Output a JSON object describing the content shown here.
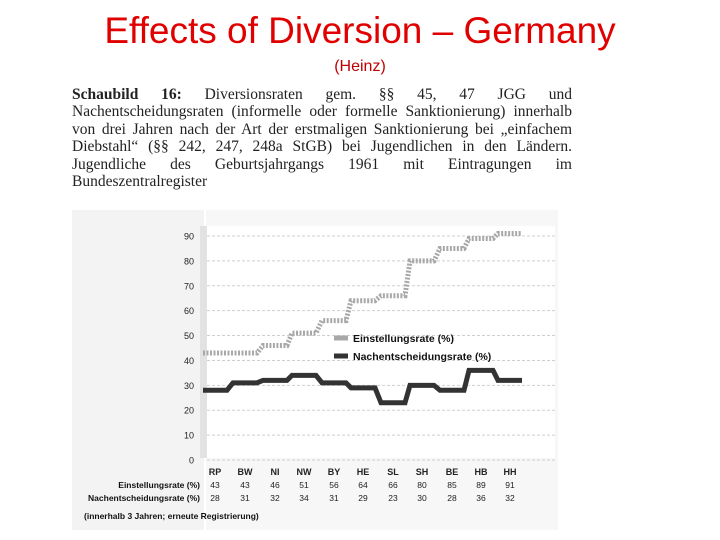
{
  "slide": {
    "title": "Effects of Diversion – Germany",
    "subtitle": "(Heinz)"
  },
  "figure": {
    "label": "Schaubild 16:",
    "caption": "Diversionsraten gem. §§ 45, 47 JGG und Nachentscheidungsraten (informelle oder formelle Sanktionierung) innerhalb von drei Jahren nach der Art der erstmaligen Sanktionierung bei „einfachem Diebstahl“ (§§ 242, 247, 248a StGB) bei Jugendlichen in den Ländern. Jugendliche des Geburtsjahrgangs 1961 mit Eintragungen im Bundeszentralregister"
  },
  "chart_data": {
    "type": "line",
    "step": true,
    "categories": [
      "RP",
      "BW",
      "NI",
      "NW",
      "BY",
      "HE",
      "SL",
      "SH",
      "BE",
      "HB",
      "HH"
    ],
    "series": [
      {
        "name": "Einstellungsrate (%)",
        "values": [
          43,
          43,
          46,
          51,
          56,
          64,
          66,
          80,
          85,
          89,
          91
        ],
        "color": "#a8a8a8"
      },
      {
        "name": "Nachentscheidungsrate (%)",
        "values": [
          28,
          31,
          32,
          34,
          31,
          29,
          23,
          30,
          28,
          36,
          32
        ],
        "color": "#333333"
      }
    ],
    "yticks": [
      0,
      10,
      20,
      30,
      40,
      50,
      60,
      70,
      80,
      90
    ],
    "ylim": [
      0,
      90
    ],
    "legend_position": "center-right",
    "table_rows": [
      {
        "label": "Einstellungsrate (%)",
        "values": [
          "43",
          "43",
          "46",
          "51",
          "56",
          "64",
          "66",
          "80",
          "85",
          "89",
          "91"
        ]
      },
      {
        "label": "Nachentscheidungsrate (%)",
        "values": [
          "28",
          "31",
          "32",
          "34",
          "31",
          "29",
          "23",
          "30",
          "28",
          "36",
          "32"
        ]
      }
    ],
    "note": "(innerhalb 3 Jahren; erneute Registrierung)"
  },
  "colors": {
    "title": "#e00000",
    "chart_background": "#f3f3f3",
    "plot_background": "#ffffff",
    "grid": "#cfcfcf"
  }
}
